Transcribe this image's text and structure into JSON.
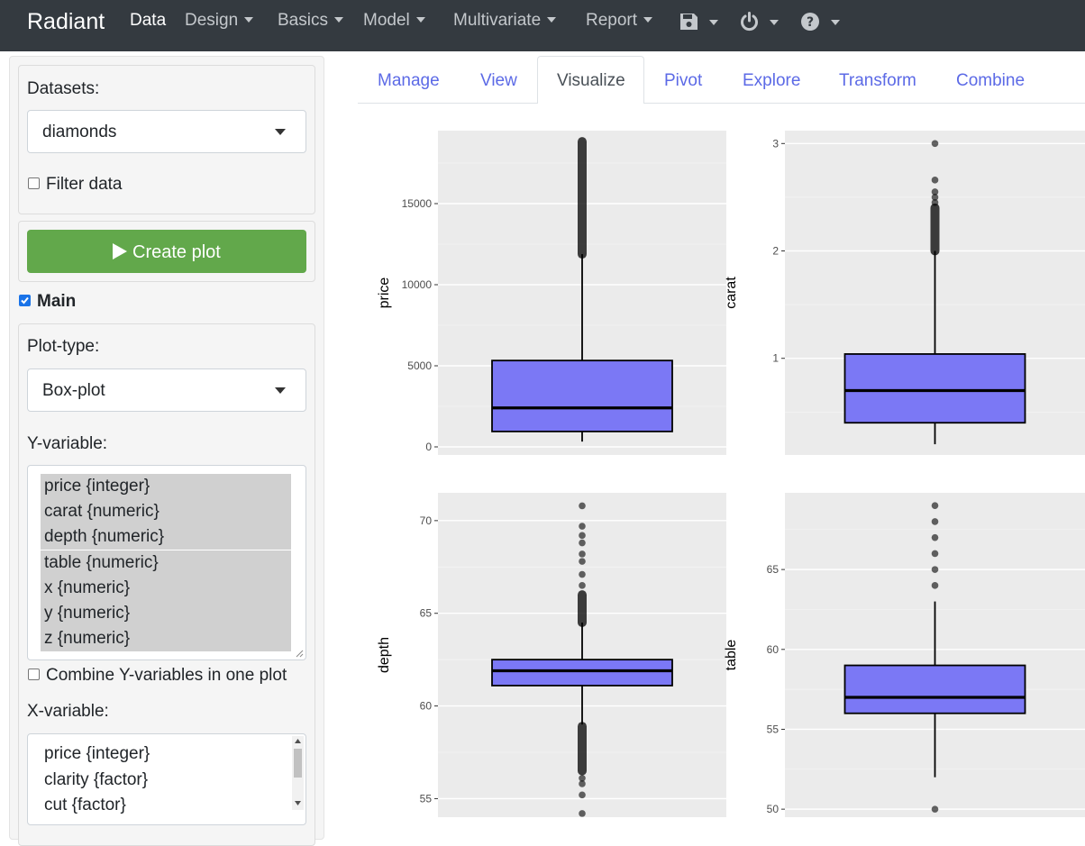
{
  "navbar": {
    "brand": "Radiant",
    "items": [
      "Data",
      "Design",
      "Basics",
      "Model",
      "Multivariate",
      "Report"
    ],
    "icons": [
      "save-icon",
      "power-icon",
      "help-icon"
    ]
  },
  "sidebar": {
    "datasets_label": "Datasets:",
    "dataset_value": "diamonds",
    "filter_label": "Filter data",
    "create_plot_label": "Create plot",
    "main_label": "Main",
    "plot_type_label": "Plot-type:",
    "plot_type_value": "Box-plot",
    "y_label": "Y-variable:",
    "y_options": [
      "price {integer}",
      "carat {numeric}",
      "depth {numeric}",
      "table {numeric}",
      "x {numeric}",
      "y {numeric}",
      "z {numeric}"
    ],
    "combine_label": "Combine Y-variables in one plot",
    "x_label": "X-variable:",
    "x_options": [
      "price {integer}",
      "clarity {factor}",
      "cut {factor}"
    ]
  },
  "tabs": [
    "Manage",
    "View",
    "Visualize",
    "Pivot",
    "Explore",
    "Transform",
    "Combine"
  ],
  "active_tab": "Visualize",
  "colors": {
    "box_fill": "#7b78f5",
    "panel_bg": "#ebebeb",
    "navbar_bg": "#343a40",
    "button_green": "#62a84b",
    "tab_link": "#5c6ae6"
  },
  "chart_data": [
    {
      "type": "box",
      "ylabel": "price",
      "ylim": [
        -500,
        19500
      ],
      "ticks": [
        0,
        5000,
        10000,
        15000
      ],
      "tick_labels": [
        "0",
        "5000",
        "10000",
        "15000"
      ],
      "whisker_low": 326,
      "q1": 950,
      "median": 2401,
      "q3": 5324,
      "whisker_high": 11886,
      "outlier_range": [
        11886,
        18823
      ],
      "outliers": []
    },
    {
      "type": "box",
      "ylabel": "carat",
      "ylim": [
        0.1,
        3.12
      ],
      "ticks": [
        1,
        2,
        3
      ],
      "tick_labels": [
        "1",
        "2",
        "3"
      ],
      "whisker_low": 0.2,
      "q1": 0.4,
      "median": 0.7,
      "q3": 1.04,
      "whisker_high": 2.0,
      "outlier_range": [
        2.0,
        2.4
      ],
      "outliers": [
        2.45,
        2.5,
        2.55,
        2.66,
        3.0
      ]
    },
    {
      "type": "box",
      "ylabel": "depth",
      "ylim": [
        54,
        71.5
      ],
      "ticks": [
        55,
        60,
        65,
        70
      ],
      "tick_labels": [
        "55",
        "60",
        "65",
        "70"
      ],
      "whisker_low": 59,
      "q1": 61.1,
      "median": 61.9,
      "q3": 62.5,
      "whisker_high": 64.5,
      "outlier_range": [
        56.5,
        58.9
      ],
      "outlier_range_high": [
        64.5,
        66.0
      ],
      "outliers": [
        54.2,
        55.2,
        55.8,
        56.1,
        66.5,
        67.1,
        67.8,
        68.2,
        68.8,
        69.2,
        69.7,
        70.8
      ]
    },
    {
      "type": "box",
      "ylabel": "table",
      "ylim": [
        49.5,
        69.8
      ],
      "ticks": [
        50,
        55,
        60,
        65
      ],
      "tick_labels": [
        "50",
        "55",
        "60",
        "65"
      ],
      "whisker_low": 52,
      "q1": 56,
      "median": 57,
      "q3": 59,
      "whisker_high": 63,
      "outlier_range": [],
      "outliers": [
        50,
        64,
        65,
        66,
        67,
        68,
        69
      ]
    }
  ]
}
